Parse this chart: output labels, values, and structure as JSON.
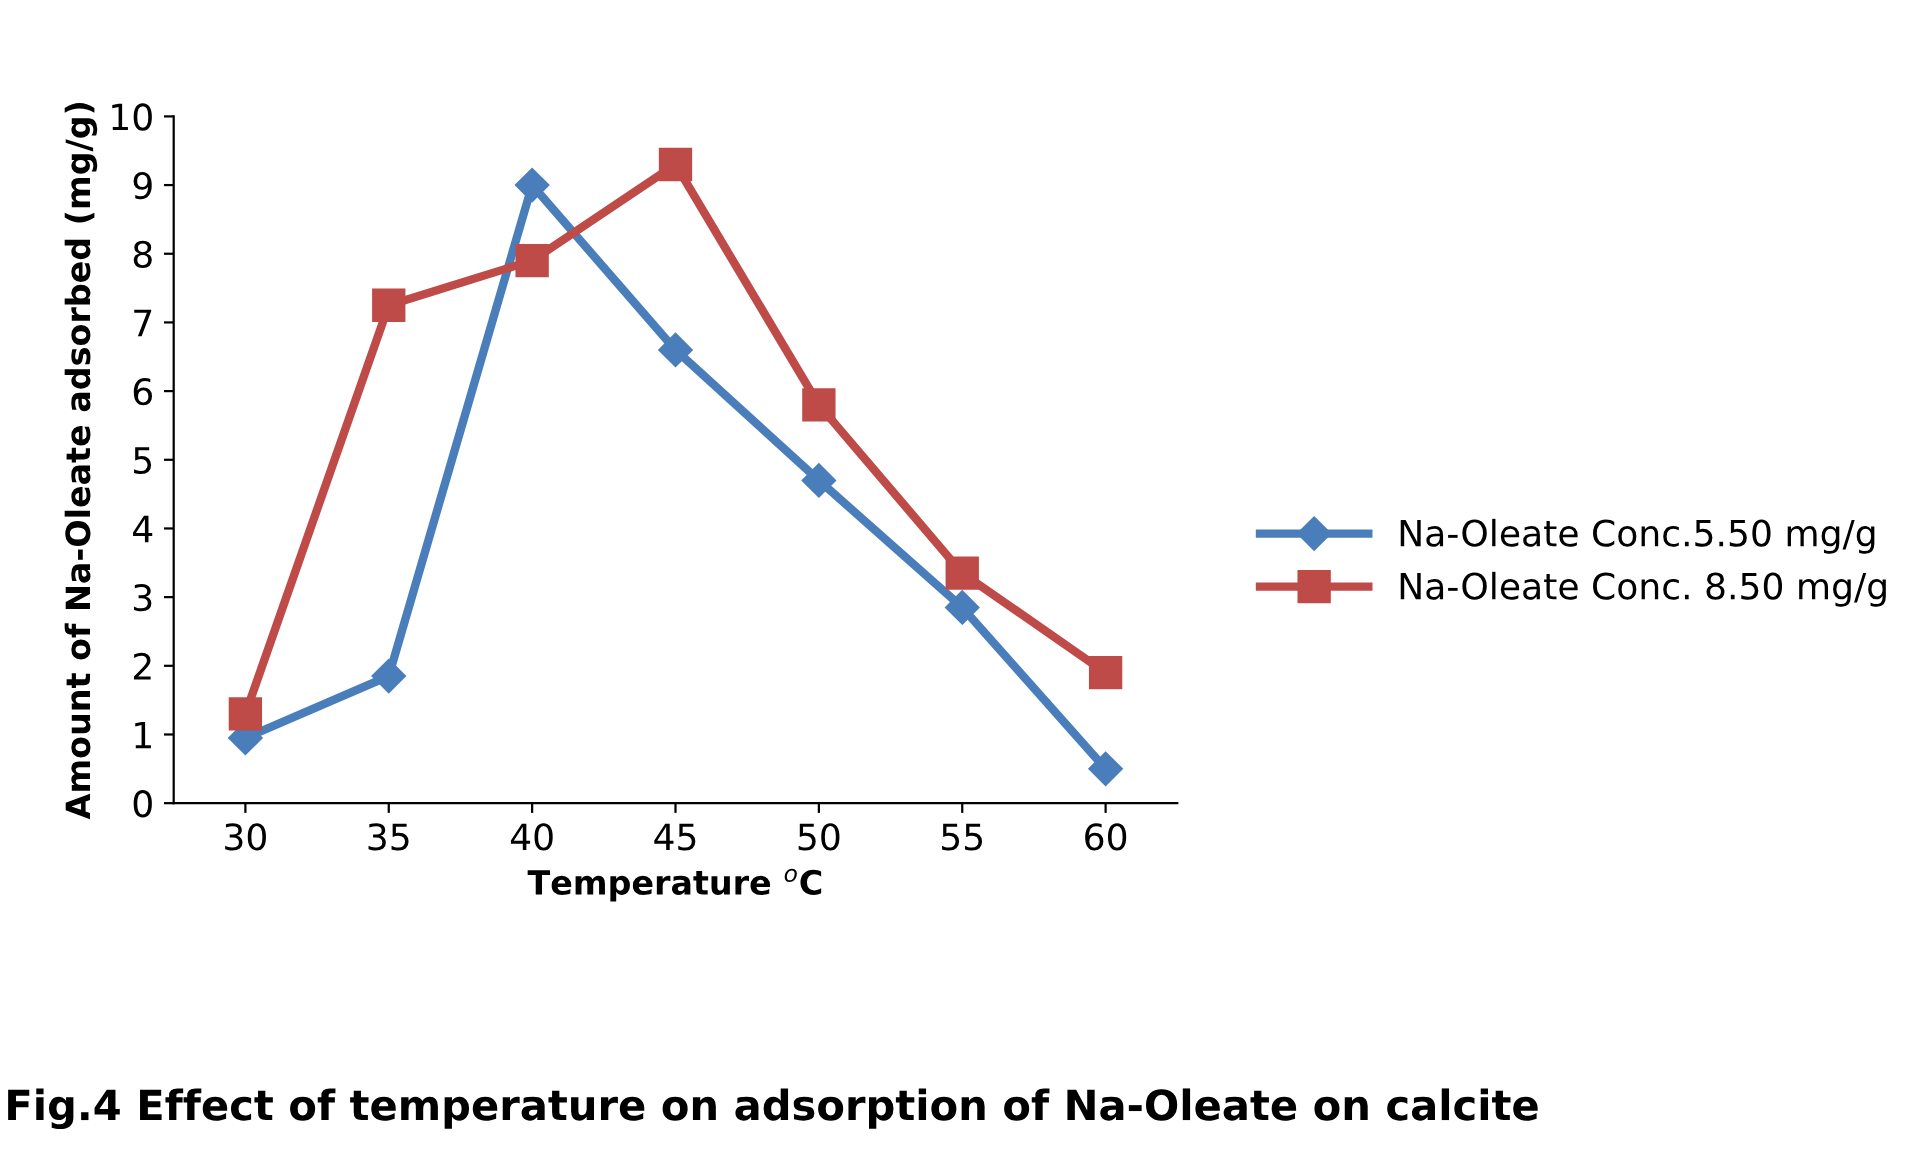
{
  "chart_data": {
    "type": "line",
    "title": "Fig.4 Effect of temperature on adsorption of Na-Oleate on calcite",
    "xlabel": "Temperature $^{o}$C",
    "ylabel": "Amount of Na-Oleate adsorbed (mg/g)",
    "categories": [
      "30",
      "35",
      "40",
      "45",
      "50",
      "55",
      "60"
    ],
    "series": [
      {
        "name": "Na-Oleate Conc.5.50 mg/g",
        "color": "#4a7ebb",
        "marker": "diamond",
        "values": [
          0.95,
          1.85,
          9.0,
          6.6,
          4.7,
          2.85,
          0.5
        ]
      },
      {
        "name": "Na-Oleate Conc. 8.50 mg/g",
        "color": "#be4b48",
        "marker": "square",
        "values": [
          1.3,
          7.25,
          7.9,
          9.3,
          5.8,
          3.35,
          1.9
        ]
      }
    ],
    "ylim": [
      0,
      10
    ],
    "yticks": [
      0,
      1,
      2,
      3,
      4,
      5,
      6,
      7,
      8,
      9,
      10
    ],
    "grid": false,
    "legend": "right"
  }
}
